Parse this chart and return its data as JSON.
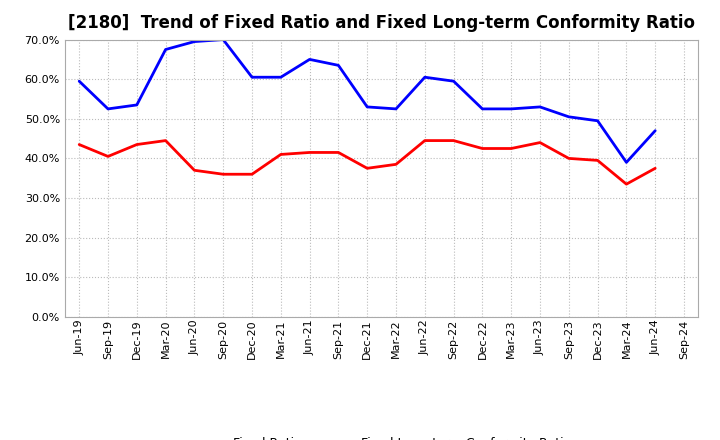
{
  "title": "[2180]  Trend of Fixed Ratio and Fixed Long-term Conformity Ratio",
  "x_labels": [
    "Jun-19",
    "Sep-19",
    "Dec-19",
    "Mar-20",
    "Jun-20",
    "Sep-20",
    "Dec-20",
    "Mar-21",
    "Jun-21",
    "Sep-21",
    "Dec-21",
    "Mar-22",
    "Jun-22",
    "Sep-22",
    "Dec-22",
    "Mar-23",
    "Jun-23",
    "Sep-23",
    "Dec-23",
    "Mar-24",
    "Jun-24",
    "Sep-24"
  ],
  "fixed_ratio": [
    0.595,
    0.525,
    0.535,
    0.675,
    0.695,
    0.7,
    0.605,
    0.605,
    0.65,
    0.635,
    0.53,
    0.525,
    0.605,
    0.595,
    0.525,
    0.525,
    0.53,
    0.505,
    0.495,
    0.39,
    0.47,
    null
  ],
  "fixed_lt_ratio": [
    0.435,
    0.405,
    0.435,
    0.445,
    0.37,
    0.36,
    0.36,
    0.41,
    0.415,
    0.415,
    0.375,
    0.385,
    0.445,
    0.445,
    0.425,
    0.425,
    0.44,
    0.4,
    0.395,
    0.335,
    0.375,
    null
  ],
  "fixed_ratio_color": "#0000FF",
  "fixed_lt_ratio_color": "#FF0000",
  "ylim": [
    0.0,
    0.7
  ],
  "yticks": [
    0.0,
    0.1,
    0.2,
    0.3,
    0.4,
    0.5,
    0.6,
    0.7
  ],
  "background_color": "#FFFFFF",
  "grid_color": "#BBBBBB",
  "legend_fixed_ratio": "Fixed Ratio",
  "legend_fixed_lt_ratio": "Fixed Long-term Conformity Ratio",
  "line_width": 2.0,
  "title_fontsize": 12,
  "tick_fontsize": 8,
  "legend_fontsize": 9
}
